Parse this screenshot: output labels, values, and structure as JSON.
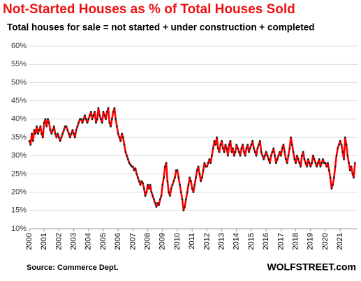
{
  "chart_data": {
    "type": "line",
    "title": "Not-Started Houses as % of Total Houses Sold",
    "subtitle": "Total houses for sale = not started + under construction + completed",
    "source": "Source: Commerce Dept.",
    "watermark": "WOLFSTREET.com",
    "color": "#ff0000",
    "marker_color": "#222222",
    "grid": true,
    "ylim": [
      10,
      60
    ],
    "yticks": [
      {
        "value": 10,
        "label": "10%"
      },
      {
        "value": 15,
        "label": "15%"
      },
      {
        "value": 20,
        "label": "20%"
      },
      {
        "value": 25,
        "label": "25%"
      },
      {
        "value": 30,
        "label": "30%"
      },
      {
        "value": 35,
        "label": "35%"
      },
      {
        "value": 40,
        "label": "40%"
      },
      {
        "value": 45,
        "label": "45%"
      },
      {
        "value": 50,
        "label": "50%"
      },
      {
        "value": 55,
        "label": "55%"
      },
      {
        "value": 60,
        "label": "60%"
      }
    ],
    "categories": [
      "2000",
      null,
      null,
      null,
      null,
      null,
      null,
      null,
      null,
      null,
      null,
      null,
      "2001",
      null,
      null,
      null,
      null,
      null,
      null,
      null,
      null,
      null,
      null,
      null,
      "2002",
      null,
      null,
      null,
      null,
      null,
      null,
      null,
      null,
      null,
      null,
      null,
      "2003",
      null,
      null,
      null,
      null,
      null,
      null,
      null,
      null,
      null,
      null,
      null,
      "2004",
      null,
      null,
      null,
      null,
      null,
      null,
      null,
      null,
      null,
      null,
      null,
      "2005",
      null,
      null,
      null,
      null,
      null,
      null,
      null,
      null,
      null,
      null,
      null,
      "2006",
      null,
      null,
      null,
      null,
      null,
      null,
      null,
      null,
      null,
      null,
      null,
      "2007",
      null,
      null,
      null,
      null,
      null,
      null,
      null,
      null,
      null,
      null,
      null,
      "2008",
      null,
      null,
      null,
      null,
      null,
      null,
      null,
      null,
      null,
      null,
      null,
      "2009",
      null,
      null,
      null,
      null,
      null,
      null,
      null,
      null,
      null,
      null,
      null,
      "2010",
      null,
      null,
      null,
      null,
      null,
      null,
      null,
      null,
      null,
      null,
      null,
      "2011",
      null,
      null,
      null,
      null,
      null,
      null,
      null,
      null,
      null,
      null,
      null,
      "2012",
      null,
      null,
      null,
      null,
      null,
      null,
      null,
      null,
      null,
      null,
      null,
      "2013",
      null,
      null,
      null,
      null,
      null,
      null,
      null,
      null,
      null,
      null,
      null,
      "2014",
      null,
      null,
      null,
      null,
      null,
      null,
      null,
      null,
      null,
      null,
      null,
      "2015",
      null,
      null,
      null,
      null,
      null,
      null,
      null,
      null,
      null,
      null,
      null,
      "2016",
      null,
      null,
      null,
      null,
      null,
      null,
      null,
      null,
      null,
      null,
      null,
      "2017",
      null,
      null,
      null,
      null,
      null,
      null,
      null,
      null,
      null,
      null,
      null,
      "2018",
      null,
      null,
      null,
      null,
      null,
      null,
      null,
      null,
      null,
      null,
      null,
      "2019",
      null,
      null,
      null,
      null,
      null,
      null,
      null,
      null,
      null,
      null,
      null,
      "2020",
      null,
      null,
      null,
      null,
      null,
      null,
      null,
      null,
      null,
      null,
      null,
      "2021",
      null,
      null,
      null,
      null,
      null,
      null,
      null,
      null,
      null,
      null,
      null,
      null
    ],
    "values": [
      34,
      33,
      36,
      34,
      37,
      36,
      38,
      36,
      37,
      38,
      36,
      35,
      39,
      40,
      38,
      40,
      39,
      37,
      36,
      37,
      38,
      36,
      35,
      36,
      35,
      34,
      35,
      36,
      37,
      38,
      38,
      37,
      36,
      35,
      36,
      37,
      36,
      35,
      37,
      38,
      39,
      40,
      40,
      39,
      40,
      41,
      40,
      39,
      40,
      41,
      42,
      40,
      41,
      42,
      39,
      40,
      43,
      41,
      40,
      39,
      42,
      41,
      40,
      42,
      43,
      39,
      38,
      40,
      42,
      43,
      40,
      38,
      36,
      35,
      34,
      36,
      35,
      33,
      31,
      30,
      29,
      28,
      27.5,
      27,
      27,
      26,
      26.5,
      25,
      24,
      23,
      22,
      23,
      22.5,
      21,
      19,
      20,
      22,
      21,
      22,
      20,
      19,
      18,
      17,
      16,
      17,
      16.5,
      18,
      19,
      22,
      24,
      27,
      28,
      23,
      20,
      19,
      21,
      22,
      23,
      24,
      26,
      26,
      24,
      22,
      20,
      18,
      15,
      16,
      18,
      20,
      22,
      24,
      23,
      21,
      20,
      22,
      24,
      26,
      27,
      25,
      23,
      24,
      26,
      28,
      27,
      27,
      28,
      29,
      28,
      30,
      32,
      34,
      33,
      35,
      32,
      31,
      33,
      34,
      32,
      31,
      33,
      32,
      30,
      33,
      34,
      31,
      32,
      30,
      31,
      33,
      32,
      31,
      30,
      32,
      33,
      31,
      30,
      32,
      33,
      31,
      32,
      33,
      34,
      32,
      31,
      30,
      32,
      33,
      34,
      31,
      30,
      29,
      30,
      31,
      30,
      29,
      28,
      30,
      31,
      32,
      30,
      28,
      29,
      30,
      31,
      30,
      32,
      33,
      31,
      29,
      28,
      30,
      32,
      35,
      33,
      31,
      29,
      28,
      30,
      29,
      28,
      27,
      30,
      31,
      29,
      28,
      27,
      29,
      28,
      27,
      28,
      30,
      29,
      28,
      27,
      28,
      29,
      27,
      28,
      29,
      28,
      28,
      27,
      28,
      26,
      24,
      21,
      22,
      24,
      27,
      30,
      32,
      33,
      34,
      33,
      31,
      29,
      35,
      33,
      30,
      28,
      26,
      27,
      25,
      24,
      28
    ]
  }
}
